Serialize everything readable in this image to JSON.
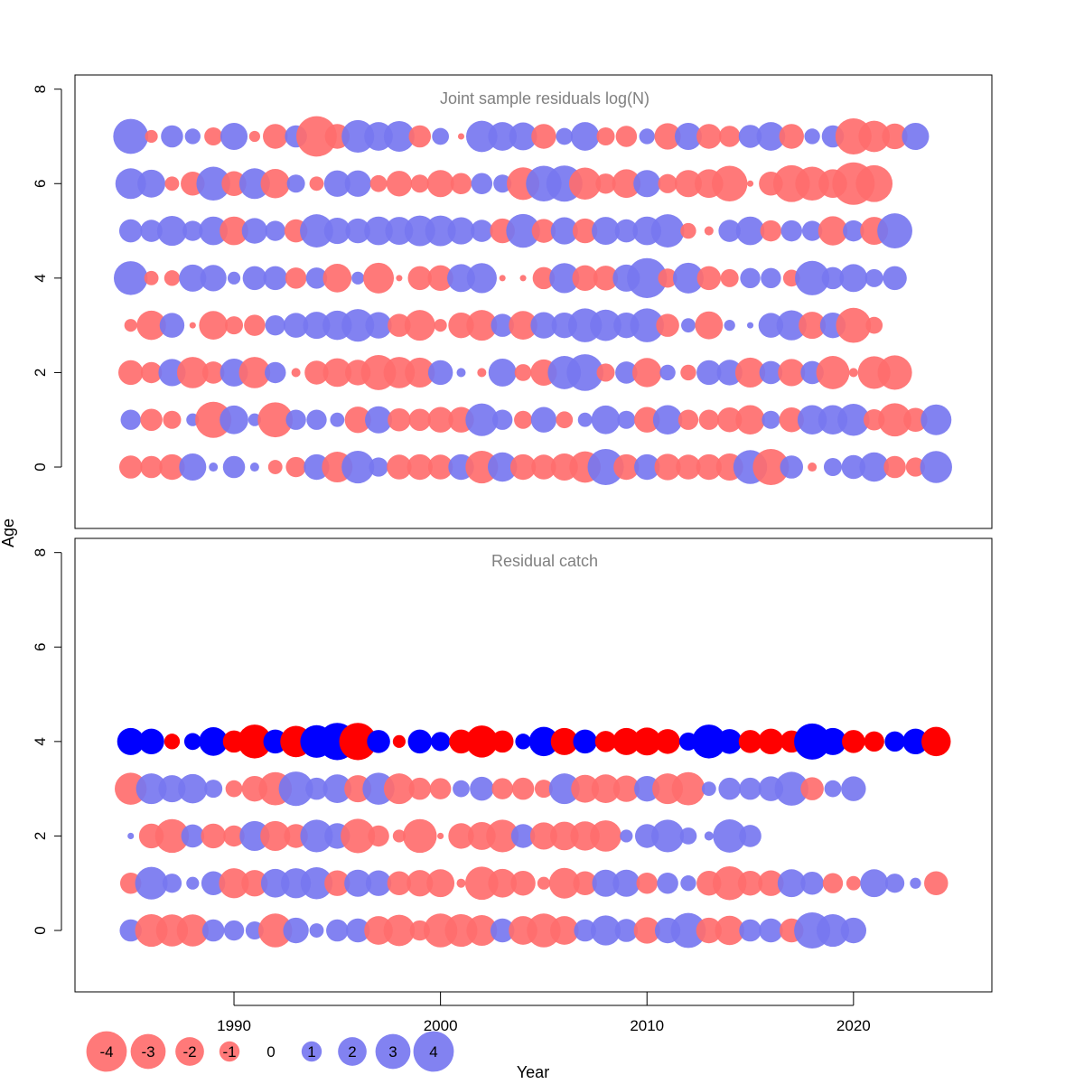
{
  "chart_data": {
    "type": "scatter",
    "xlabel": "Year",
    "ylabel": "Age",
    "xlim": [
      1982.3,
      2026.7
    ],
    "x_ticks": [
      1990,
      2000,
      2010,
      2020
    ],
    "y_ticks": [
      0,
      2,
      4,
      6,
      8
    ],
    "colors": {
      "positive_faded": "#7777f0",
      "negative_faded": "#ff6e6e",
      "positive_solid": "#0000ff",
      "negative_solid": "#ff0000",
      "panel_title": "#808080",
      "axis": "#000000"
    },
    "legend": {
      "values": [
        -4,
        -3,
        -2,
        -1,
        0,
        1,
        2,
        3,
        4
      ],
      "labels": [
        "-4",
        "-3",
        "-2",
        "-1",
        "0",
        "1",
        "2",
        "3",
        "4"
      ]
    },
    "panels": [
      {
        "title": "Joint sample residuals log(N)",
        "ylim": [
          -1.3,
          8.3
        ],
        "style": "faded",
        "years_start": 1985,
        "ages": [
          7,
          6,
          5,
          4,
          3,
          2,
          1,
          0
        ],
        "residuals": [
          [
            3.0,
            -0.4,
            1.2,
            0.6,
            -0.8,
            1.8,
            -0.3,
            -1.5,
            1.2,
            -4.0,
            -1.5,
            2.6,
            2.0,
            2.3,
            -1.2,
            0.7,
            -0.1,
            2.4,
            2.0,
            1.9,
            -1.5,
            0.7,
            2.0,
            -0.8,
            -1.1,
            0.6,
            -1.7,
            1.8,
            -1.5,
            -1.1,
            1.3,
            2.0,
            -1.5,
            0.6,
            1.2,
            -3.2,
            -2.4,
            -1.6,
            1.8
          ],
          [
            2.3,
            1.9,
            -0.5,
            -1.4,
            2.8,
            -1.5,
            2.3,
            -2.1,
            0.8,
            -0.5,
            1.7,
            1.7,
            -0.7,
            -1.6,
            -0.8,
            -1.8,
            -1.1,
            1.1,
            0.8,
            -2.6,
            3.1,
            3.2,
            -2.5,
            -1.0,
            -2.0,
            1.8,
            -0.9,
            -1.8,
            -2.0,
            -3.1,
            -0.1,
            -1.4,
            -3.3,
            -2.8,
            -2.0,
            -4.4,
            -3.3
          ],
          [
            1.3,
            1.2,
            2.2,
            1.0,
            2.0,
            -2.0,
            1.6,
            1.0,
            -1.3,
            2.7,
            1.7,
            1.5,
            2.0,
            1.9,
            2.3,
            2.3,
            1.8,
            1.2,
            -1.5,
            2.8,
            -1.4,
            1.8,
            -1.5,
            1.9,
            1.3,
            2.0,
            2.7,
            -0.6,
            -0.2,
            1.2,
            2.0,
            -1.1,
            1.1,
            1.0,
            -2.1,
            1.1,
            -1.9,
            3.0
          ],
          [
            2.8,
            -0.5,
            -0.6,
            1.8,
            1.7,
            0.4,
            1.4,
            1.4,
            -1.1,
            1.1,
            -2.0,
            0.4,
            -2.3,
            -0.1,
            -1.4,
            -1.6,
            1.9,
            2.2,
            -0.1,
            -0.1,
            -1.2,
            2.2,
            -1.6,
            -1.5,
            1.8,
            3.9,
            -0.9,
            2.3,
            -1.4,
            -0.8,
            1.0,
            1.0,
            -0.7,
            2.9,
            1.2,
            1.9,
            0.8,
            1.4
          ],
          [
            -0.4,
            -2.1,
            1.5,
            -0.1,
            -2.0,
            -0.8,
            -1.1,
            1.0,
            1.5,
            1.8,
            2.1,
            2.6,
            1.7,
            -1.3,
            -2.3,
            -0.4,
            -1.6,
            -2.3,
            1.3,
            -2.0,
            1.7,
            1.6,
            2.8,
            2.4,
            1.6,
            2.8,
            -1.3,
            0.5,
            -1.9,
            0.3,
            0.1,
            1.5,
            2.2,
            -1.8,
            1.6,
            -3.0,
            -0.7
          ],
          [
            -1.5,
            -1.1,
            1.8,
            -2.4,
            -1.2,
            1.9,
            -2.4,
            1.1,
            -0.2,
            -1.4,
            -2.0,
            -1.6,
            -3.0,
            -2.4,
            -2.2,
            1.5,
            0.2,
            -0.2,
            1.9,
            -0.7,
            -1.7,
            2.7,
            3.3,
            -0.8,
            1.2,
            -2.1,
            0.6,
            -0.6,
            1.5,
            1.6,
            -2.2,
            1.3,
            -1.8,
            1.3,
            -2.7,
            -0.2,
            -2.6,
            -2.9
          ],
          [
            1.0,
            -1.2,
            -0.8,
            0.4,
            -3.2,
            2.0,
            0.4,
            -3.0,
            1.0,
            1.0,
            0.5,
            -1.7,
            1.8,
            -1.3,
            -1.2,
            -1.6,
            -1.6,
            2.6,
            1.0,
            -0.8,
            1.6,
            -0.7,
            0.5,
            2.0,
            0.8,
            -1.6,
            2.1,
            -1.0,
            -1.0,
            -1.5,
            -2.1,
            0.8,
            -1.5,
            2.1,
            2.1,
            2.5,
            -1.1,
            -2.7,
            -1.4,
            2.3
          ],
          [
            -1.3,
            -1.2,
            -1.6,
            1.8,
            0.2,
            1.2,
            0.2,
            -0.5,
            -1.0,
            1.6,
            -2.3,
            2.6,
            0.9,
            -1.5,
            -1.6,
            -1.5,
            1.6,
            -2.6,
            2.1,
            -1.6,
            -1.5,
            -1.8,
            -2.4,
            3.2,
            -1.6,
            1.6,
            -1.7,
            -1.5,
            -1.6,
            -1.8,
            2.8,
            -3.2,
            1.3,
            -0.2,
            0.8,
            1.4,
            2.1,
            -1.2,
            -0.9,
            2.5
          ]
        ]
      },
      {
        "title": "Residual catch",
        "ylim": [
          -1.3,
          8.3
        ],
        "style": "mixed",
        "years_start": 1985,
        "ages": [
          4,
          3,
          2,
          1,
          0
        ],
        "residuals": [
          [
            1.8,
            1.6,
            -0.6,
            0.7,
            2.0,
            -1.2,
            -2.8,
            1.4,
            -2.4,
            2.6,
            3.4,
            -3.4,
            1.3,
            -0.4,
            1.4,
            0.9,
            -1.4,
            -2.5,
            -1.2,
            0.6,
            2.1,
            -1.8,
            1.4,
            -1.1,
            -1.8,
            -1.9,
            -1.5,
            0.8,
            2.8,
            1.5,
            -1.3,
            -1.6,
            -1.2,
            3.2,
            1.8,
            -1.3,
            -1.0,
            1.0,
            1.6,
            -2.1
          ],
          [
            -2.5,
            2.3,
            1.8,
            2.1,
            0.8,
            -0.7,
            -1.6,
            -2.7,
            2.9,
            1.2,
            2.0,
            -1.8,
            2.5,
            -2.3,
            -1.2,
            -1.1,
            0.7,
            1.4,
            -1.1,
            -1.2,
            -0.8,
            2.3,
            -1.9,
            -2.0,
            -1.7,
            1.6,
            -2.3,
            -2.7,
            0.5,
            1.2,
            1.2,
            1.5,
            2.8,
            -1.3,
            0.7,
            1.5
          ],
          [
            0.1,
            -1.5,
            -2.8,
            1.3,
            -1.5,
            -1.1,
            2.2,
            -2.2,
            -1.4,
            2.6,
            1.6,
            -2.9,
            -1.1,
            -0.4,
            -2.8,
            -0.1,
            -1.6,
            -1.9,
            -2.6,
            1.4,
            -1.8,
            -2.0,
            -2.1,
            -2.4,
            0.4,
            1.4,
            2.6,
            0.7,
            0.2,
            2.7,
            1.2
          ],
          [
            -1.1,
            2.6,
            0.9,
            0.4,
            1.4,
            -2.2,
            -1.7,
            2.0,
            2.2,
            2.5,
            -1.6,
            1.8,
            1.6,
            -1.4,
            -1.7,
            -1.9,
            -0.2,
            -2.7,
            -2.0,
            -1.5,
            -0.4,
            -2.3,
            -1.4,
            1.8,
            1.8,
            -1.1,
            1.1,
            0.6,
            -1.5,
            -2.8,
            -1.5,
            -1.6,
            1.9,
            1.3,
            -1.0,
            -0.5,
            1.9,
            0.9,
            0.3,
            -1.4
          ],
          [
            1.2,
            -2.6,
            -2.5,
            -2.5,
            1.2,
            1.0,
            0.8,
            -2.8,
            1.6,
            0.5,
            1.2,
            1.4,
            -2.0,
            -2.4,
            -1.0,
            -2.8,
            -2.6,
            -2.3,
            1.4,
            -2.0,
            -2.8,
            -2.0,
            1.2,
            2.2,
            1.3,
            -1.7,
            1.6,
            3.0,
            -1.6,
            -2.1,
            1.2,
            1.4,
            -1.4,
            3.2,
            2.6,
            1.6
          ]
        ]
      }
    ]
  }
}
